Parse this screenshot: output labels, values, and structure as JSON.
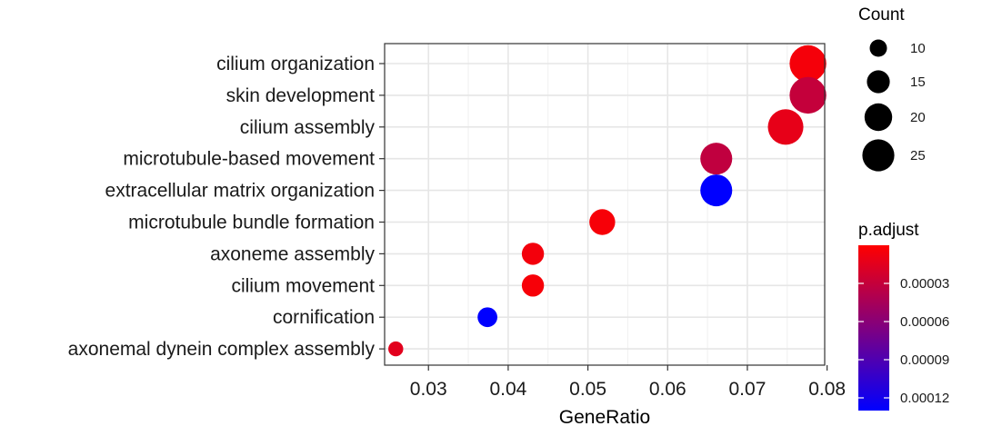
{
  "chart_data": {
    "type": "scatter",
    "xlabel": "GeneRatio",
    "xlim": [
      0.0245,
      0.0797
    ],
    "xticks": [
      0.03,
      0.04,
      0.05,
      0.06,
      0.07,
      0.08
    ],
    "xtick_labels": [
      "0.03",
      "0.04",
      "0.05",
      "0.06",
      "0.07",
      "0.08"
    ],
    "grid": true,
    "categories": [
      "cilium organization",
      "skin development",
      "cilium assembly",
      "microtubule-based movement",
      "extracellular matrix organization",
      "microtubule bundle formation",
      "axoneme assembly",
      "cilium movement",
      "cornification",
      "axonemal dynein complex assembly"
    ],
    "points": [
      {
        "term": "cilium organization",
        "gene_ratio": 0.0776,
        "count": 26,
        "p_adjust": 5e-06
      },
      {
        "term": "skin development",
        "gene_ratio": 0.0776,
        "count": 26,
        "p_adjust": 3e-05
      },
      {
        "term": "cilium assembly",
        "gene_ratio": 0.0748,
        "count": 25,
        "p_adjust": 1.2e-05
      },
      {
        "term": "microtubule-based movement",
        "gene_ratio": 0.0661,
        "count": 22,
        "p_adjust": 3.2e-05
      },
      {
        "term": "extracellular matrix organization",
        "gene_ratio": 0.0661,
        "count": 22,
        "p_adjust": 0.00013
      },
      {
        "term": "microtubule bundle formation",
        "gene_ratio": 0.0518,
        "count": 17,
        "p_adjust": 4e-06
      },
      {
        "term": "axoneme assembly",
        "gene_ratio": 0.0431,
        "count": 14,
        "p_adjust": 6e-06
      },
      {
        "term": "cilium movement",
        "gene_ratio": 0.0431,
        "count": 14,
        "p_adjust": 4e-06
      },
      {
        "term": "cornification",
        "gene_ratio": 0.0374,
        "count": 12,
        "p_adjust": 0.00013
      },
      {
        "term": "axonemal dynein complex assembly",
        "gene_ratio": 0.0259,
        "count": 8,
        "p_adjust": 1.5e-05
      }
    ],
    "size_legend": {
      "title": "Count",
      "entries": [
        10,
        15,
        20,
        25
      ],
      "entry_labels": [
        "10",
        "15",
        "20",
        "25"
      ]
    },
    "color_legend": {
      "title": "p.adjust",
      "ticks": [
        3e-05,
        6e-05,
        9e-05,
        0.00012
      ],
      "tick_labels": [
        "0.00003",
        "0.00006",
        "0.00009",
        "0.00012"
      ],
      "range": [
        0.0,
        0.00013
      ],
      "low_color": "#ff0000",
      "high_color": "#0000ff",
      "placement": "right"
    }
  }
}
